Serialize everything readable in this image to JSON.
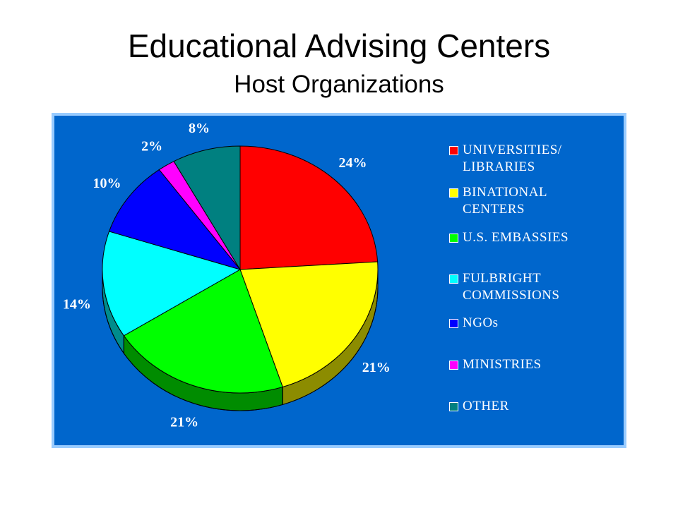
{
  "chart_data": {
    "type": "pie",
    "title": "Educational Advising Centers",
    "subtitle": "Host Organizations",
    "categories": [
      "UNIVERSITIES/ LIBRARIES",
      "BINATIONAL CENTERS",
      "U.S. EMBASSIES",
      "FULBRIGHT COMMISSIONS",
      "NGOs",
      "MINISTRIES",
      "OTHER"
    ],
    "values": [
      24,
      21,
      21,
      14,
      10,
      2,
      8
    ],
    "value_labels": [
      "24%",
      "21%",
      "21%",
      "14%",
      "10%",
      "2%",
      "8%"
    ],
    "colors": [
      "#ff0000",
      "#ffff00",
      "#00ff00",
      "#00ffff",
      "#0000ff",
      "#ff00ff",
      "#008080"
    ],
    "legend": "right"
  }
}
